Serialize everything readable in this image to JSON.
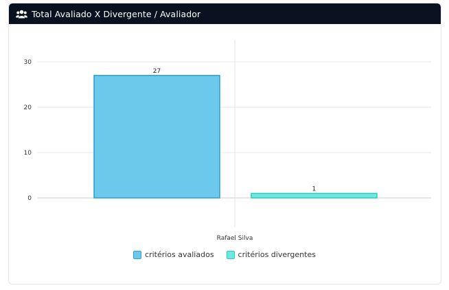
{
  "card": {
    "title": "Total Avaliado X Divergente / Avaliador",
    "icon": "users-icon"
  },
  "chart_data": {
    "type": "bar",
    "categories": [
      "Rafael Silva"
    ],
    "series": [
      {
        "name": "critérios avaliados",
        "values": [
          27
        ],
        "color": "#6cc9eb",
        "border": "#2a9fd6"
      },
      {
        "name": "critérios divergentes",
        "values": [
          1
        ],
        "color": "#6fe9e0",
        "border": "#2ec9c0"
      }
    ],
    "yticks": [
      0,
      10,
      20,
      30
    ],
    "ylim": [
      0,
      30
    ],
    "grid": true,
    "legend_position": "bottom"
  }
}
